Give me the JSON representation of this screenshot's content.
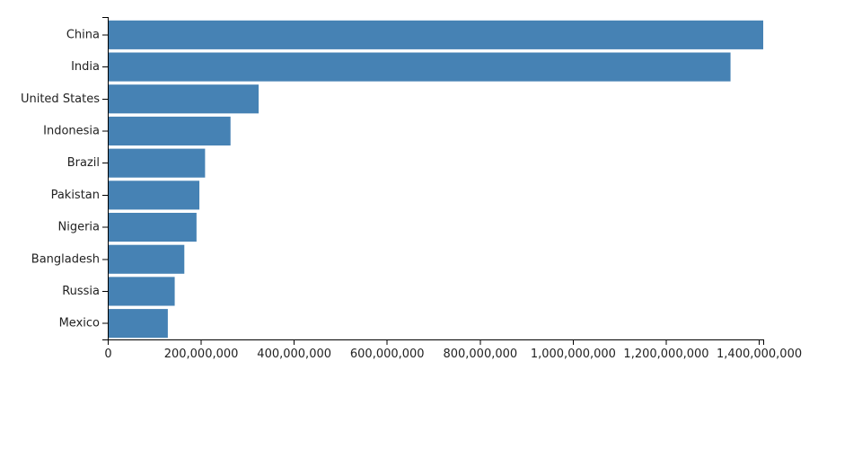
{
  "chart_data": {
    "type": "bar",
    "orientation": "horizontal",
    "categories": [
      "China",
      "India",
      "United States",
      "Indonesia",
      "Brazil",
      "Pakistan",
      "Nigeria",
      "Bangladesh",
      "Russia",
      "Mexico"
    ],
    "values": [
      1409517397,
      1339180127,
      324459463,
      263991379,
      209288278,
      197015955,
      190886311,
      164669751,
      143989754,
      129163276
    ],
    "xlim": [
      0,
      1409517397
    ],
    "x_ticks": [
      0,
      200000000,
      400000000,
      600000000,
      800000000,
      1000000000,
      1200000000,
      1400000000
    ],
    "x_tick_labels": [
      "0",
      "200,000,000",
      "400,000,000",
      "600,000,000",
      "800,000,000",
      "1,000,000,000",
      "1,200,000,000",
      "1,400,000,000"
    ],
    "title": "",
    "xlabel": "",
    "ylabel": "",
    "grid": false,
    "legend": "none",
    "bar_color": "#4682b4"
  }
}
